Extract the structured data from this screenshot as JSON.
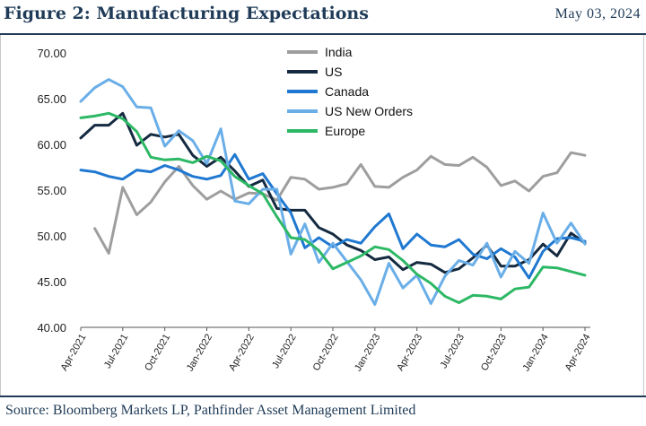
{
  "header": {
    "title": "Figure 2: Manufacturing Expectations",
    "date": "May 03, 2024"
  },
  "footer": {
    "source": "Source: Bloomberg Markets LP, Pathfinder Asset Management Limited"
  },
  "chart_data": {
    "type": "line",
    "title": "",
    "xlabel": "",
    "ylabel": "",
    "ylim": [
      40,
      70
    ],
    "yticks": [
      "70.00",
      "65.00",
      "60.00",
      "55.00",
      "50.00",
      "45.00",
      "40.00"
    ],
    "ytick_values": [
      70,
      65,
      60,
      55,
      50,
      45,
      40
    ],
    "grid": false,
    "legend_position": "top-center",
    "x_start": "2021-04",
    "x": [
      "2021-04",
      "2021-05",
      "2021-06",
      "2021-07",
      "2021-08",
      "2021-09",
      "2021-10",
      "2021-11",
      "2021-12",
      "2022-01",
      "2022-02",
      "2022-03",
      "2022-04",
      "2022-05",
      "2022-06",
      "2022-07",
      "2022-08",
      "2022-09",
      "2022-10",
      "2022-11",
      "2022-12",
      "2023-01",
      "2023-02",
      "2023-03",
      "2023-04",
      "2023-05",
      "2023-06",
      "2023-07",
      "2023-08",
      "2023-09",
      "2023-10",
      "2023-11",
      "2023-12",
      "2024-01",
      "2024-02",
      "2024-03",
      "2024-04"
    ],
    "xtick_labels": [
      {
        "label": "Apr-2021",
        "month": 0
      },
      {
        "label": "Jul-2021",
        "month": 3
      },
      {
        "label": "Oct-2021",
        "month": 6
      },
      {
        "label": "Jan-2022",
        "month": 9
      },
      {
        "label": "Apr-2022",
        "month": 12
      },
      {
        "label": "Jul-2022",
        "month": 15
      },
      {
        "label": "Oct-2022",
        "month": 18
      },
      {
        "label": "Jan-2023",
        "month": 21
      },
      {
        "label": "Apr-2023",
        "month": 24
      },
      {
        "label": "Jul-2023",
        "month": 27
      },
      {
        "label": "Oct-2023",
        "month": 30
      },
      {
        "label": "Jan-2024",
        "month": 33
      },
      {
        "label": "Apr-2024",
        "month": 36
      }
    ],
    "series": [
      {
        "name": "India",
        "color": "#9e9e9e",
        "values": [
          null,
          50.8,
          48.1,
          55.3,
          52.3,
          53.7,
          55.9,
          57.6,
          55.5,
          54.0,
          54.9,
          54.0,
          54.7,
          54.6,
          53.9,
          56.4,
          56.2,
          55.1,
          55.3,
          55.7,
          57.8,
          55.4,
          55.3,
          56.4,
          57.2,
          58.7,
          57.8,
          57.7,
          58.6,
          57.5,
          55.5,
          56.0,
          54.9,
          56.5,
          56.9,
          59.1,
          58.8
        ]
      },
      {
        "name": "US",
        "color": "#152a40",
        "values": [
          60.7,
          62.1,
          62.1,
          63.4,
          59.9,
          61.1,
          60.8,
          61.1,
          58.8,
          57.6,
          58.6,
          57.1,
          55.4,
          56.1,
          53.0,
          52.8,
          52.8,
          50.9,
          50.2,
          49.0,
          48.4,
          47.4,
          47.7,
          46.3,
          47.1,
          46.9,
          46.0,
          46.4,
          47.6,
          49.0,
          46.7,
          46.7,
          47.4,
          49.1,
          47.8,
          50.3,
          49.2
        ]
      },
      {
        "name": "Canada",
        "color": "#1f78d1",
        "values": [
          57.2,
          57.0,
          56.5,
          56.2,
          57.2,
          57.0,
          57.7,
          57.2,
          56.5,
          56.2,
          56.6,
          58.9,
          56.2,
          56.8,
          54.6,
          52.5,
          48.7,
          49.8,
          48.8,
          49.6,
          49.2,
          51.0,
          52.4,
          48.6,
          50.2,
          49.0,
          48.8,
          49.6,
          48.0,
          47.5,
          48.6,
          47.7,
          45.4,
          48.3,
          49.7,
          49.8,
          49.4
        ]
      },
      {
        "name": "US New Orders",
        "color": "#6aaee8",
        "values": [
          64.7,
          66.2,
          67.1,
          66.3,
          64.1,
          64.0,
          59.8,
          61.5,
          60.4,
          57.9,
          61.7,
          53.8,
          53.5,
          55.1,
          55.1,
          48.0,
          51.3,
          47.1,
          49.2,
          47.2,
          45.2,
          42.5,
          47.0,
          44.3,
          45.7,
          42.6,
          45.6,
          47.3,
          46.8,
          49.2,
          45.5,
          48.3,
          47.0,
          52.5,
          49.2,
          51.4,
          49.1
        ]
      },
      {
        "name": "Europe",
        "color": "#2db865",
        "values": [
          62.9,
          63.1,
          63.4,
          62.8,
          61.4,
          58.6,
          58.3,
          58.4,
          58.0,
          58.7,
          58.2,
          56.5,
          55.5,
          54.6,
          52.1,
          49.8,
          49.6,
          48.4,
          46.4,
          47.1,
          47.8,
          48.8,
          48.5,
          47.3,
          45.8,
          44.8,
          43.4,
          42.7,
          43.5,
          43.4,
          43.1,
          44.2,
          44.4,
          46.6,
          46.5,
          46.1,
          45.7
        ]
      }
    ]
  }
}
